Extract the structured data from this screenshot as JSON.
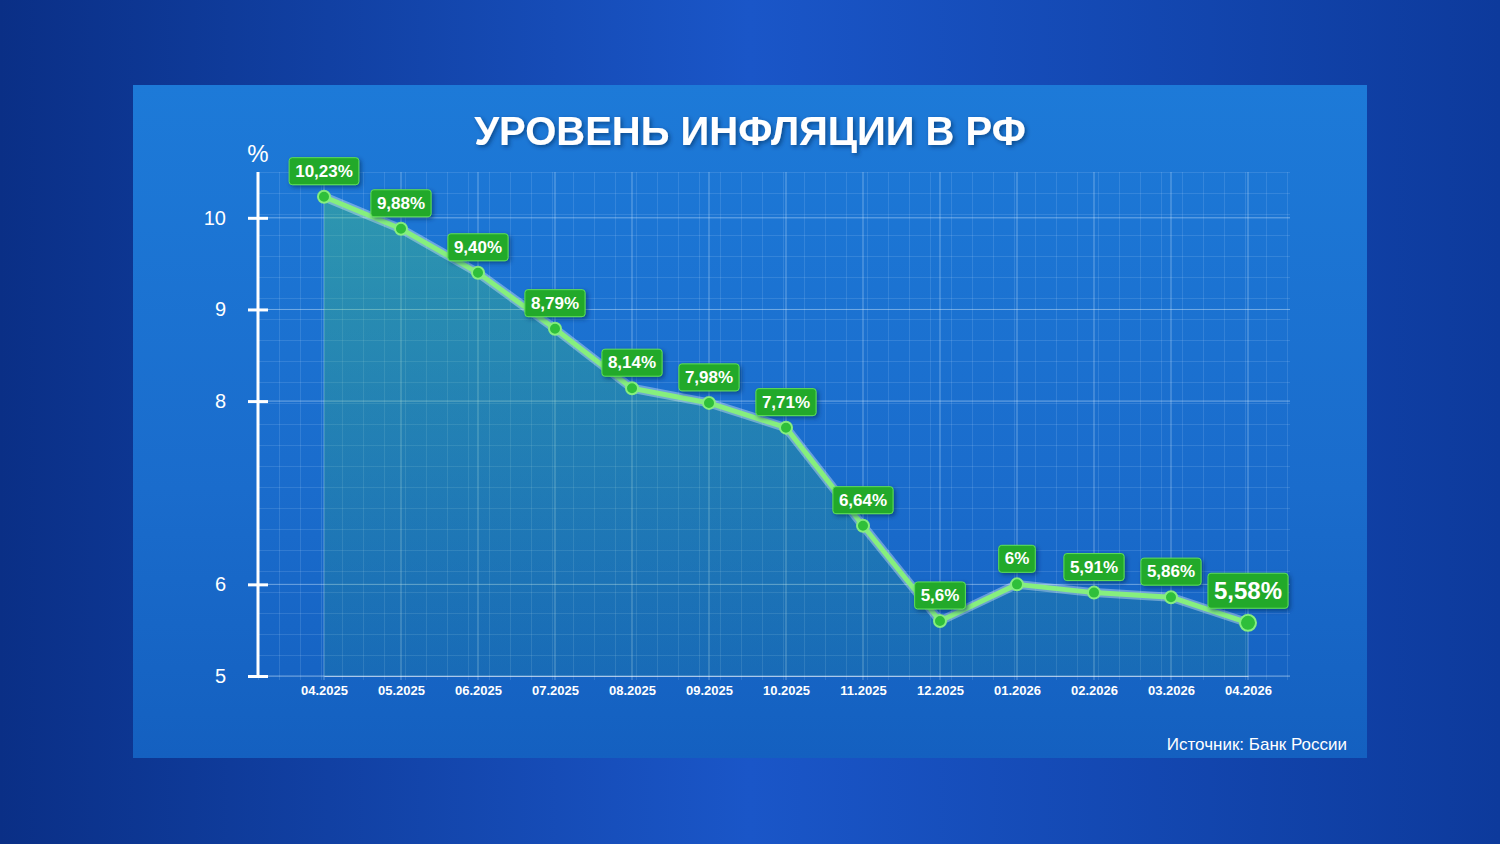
{
  "chart_data": {
    "type": "line",
    "title": "УРОВЕНЬ ИНФЛЯЦИИ В РФ",
    "y_label": "%",
    "source": "Источник: Банк России",
    "categories": [
      "04.2025",
      "05.2025",
      "06.2025",
      "07.2025",
      "08.2025",
      "09.2025",
      "10.2025",
      "11.2025",
      "12.2025",
      "01.2026",
      "02.2026",
      "03.2026",
      "04.2026"
    ],
    "values": [
      10.23,
      9.88,
      9.4,
      8.79,
      8.14,
      7.98,
      7.71,
      6.64,
      5.6,
      6,
      5.91,
      5.86,
      5.58
    ],
    "value_labels": [
      "10,23%",
      "9,88%",
      "9,40%",
      "8,79%",
      "8,14%",
      "7,98%",
      "7,71%",
      "6,64%",
      "5,6%",
      "6%",
      "5,91%",
      "5,86%",
      "5,58%"
    ],
    "color": "#86ef7e",
    "marker": "circle",
    "data_labels": true,
    "grid": true,
    "ylim": [
      5,
      10.5
    ],
    "yticks": [
      5,
      6,
      8,
      9,
      10
    ]
  }
}
